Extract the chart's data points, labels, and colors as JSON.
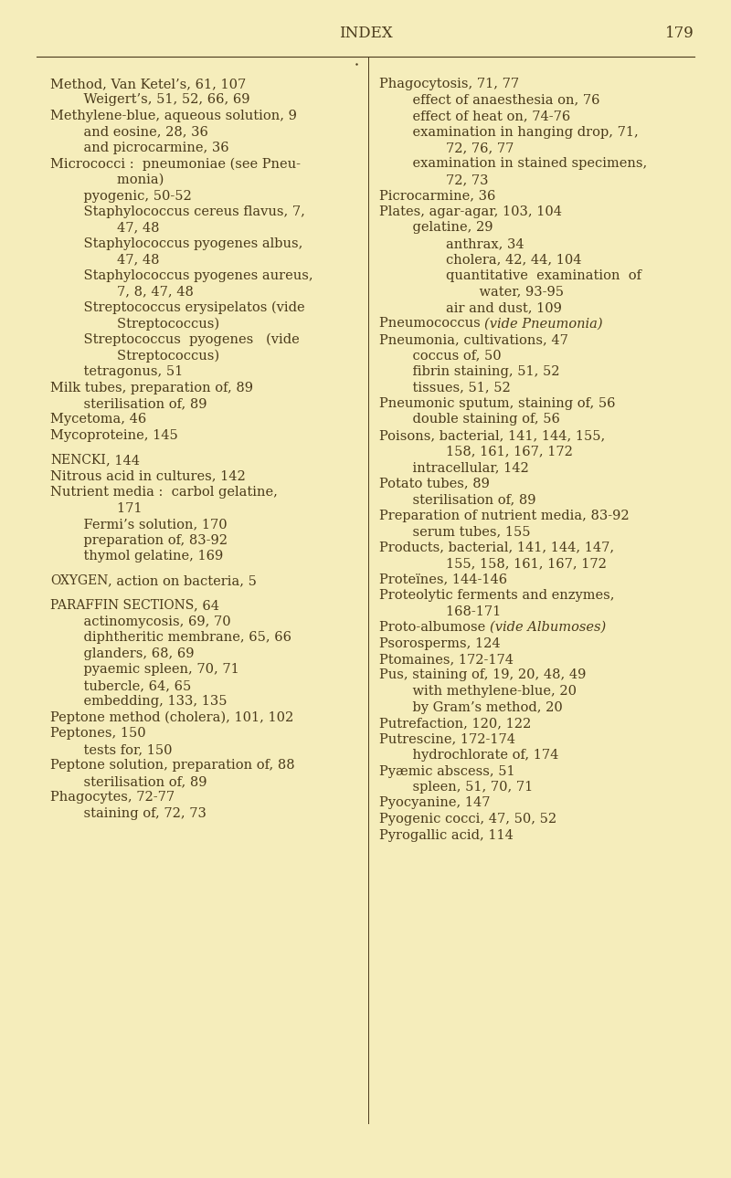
{
  "background_color": "#f5edbb",
  "text_color": "#4a3a1a",
  "header_title": "INDEX",
  "header_page": "179",
  "font_size": 10.5,
  "title_font_size": 12,
  "left_column": [
    {
      "text": "Method, Van Ketel’s, 61, 107",
      "indent": 0,
      "style": "normal"
    },
    {
      "text": "    Weigert’s, 51, 52, 66, 69",
      "indent": 1,
      "style": "normal"
    },
    {
      "text": "Methylene-blue, aqueous solution, 9",
      "indent": 0,
      "style": "normal"
    },
    {
      "text": "    and eosine, 28, 36",
      "indent": 1,
      "style": "normal"
    },
    {
      "text": "    and picrocarmine, 36",
      "indent": 1,
      "style": "normal"
    },
    {
      "text": "Micrococci :  pneumoniae (see Pneu-",
      "indent": 0,
      "style": "normal"
    },
    {
      "text": "        monia)",
      "indent": 2,
      "style": "normal"
    },
    {
      "text": "    pyogenic, 50-52",
      "indent": 1,
      "style": "normal"
    },
    {
      "text": "    Staphylococcus cereus flavus, 7,",
      "indent": 1,
      "style": "normal"
    },
    {
      "text": "        47, 48",
      "indent": 2,
      "style": "normal"
    },
    {
      "text": "    Staphylococcus pyogenes albus,",
      "indent": 1,
      "style": "normal"
    },
    {
      "text": "        47, 48",
      "indent": 2,
      "style": "normal"
    },
    {
      "text": "    Staphylococcus pyogenes aureus,",
      "indent": 1,
      "style": "normal"
    },
    {
      "text": "        7, 8, 47, 48",
      "indent": 2,
      "style": "normal"
    },
    {
      "text": "    Streptococcus erysipelatos (vide",
      "indent": 1,
      "style": "normal",
      "vide_suffix": " Streptococcus)"
    },
    {
      "text": "        Streptococcus)",
      "indent": 2,
      "style": "normal"
    },
    {
      "text": "    Streptococcus  pyogenes   (vide",
      "indent": 1,
      "style": "normal",
      "vide_suffix": " Streptococcus)"
    },
    {
      "text": "        Streptococcus)",
      "indent": 2,
      "style": "normal"
    },
    {
      "text": "    tetragonus, 51",
      "indent": 1,
      "style": "normal"
    },
    {
      "text": "Milk tubes, preparation of, 89",
      "indent": 0,
      "style": "normal"
    },
    {
      "text": "    sterilisation of, 89",
      "indent": 1,
      "style": "normal"
    },
    {
      "text": "Mycetoma, 46",
      "indent": 0,
      "style": "normal"
    },
    {
      "text": "Mycoproteine, 145",
      "indent": 0,
      "style": "normal"
    },
    {
      "text": "",
      "indent": 0,
      "style": "blank"
    },
    {
      "text": "Nencki, 144",
      "indent": 0,
      "style": "smallcaps"
    },
    {
      "text": "Nitrous acid in cultures, 142",
      "indent": 0,
      "style": "normal"
    },
    {
      "text": "Nutrient media :  carbol gelatine,",
      "indent": 0,
      "style": "normal"
    },
    {
      "text": "        171",
      "indent": 2,
      "style": "normal"
    },
    {
      "text": "    Fermi’s solution, 170",
      "indent": 1,
      "style": "normal"
    },
    {
      "text": "    preparation of, 83-92",
      "indent": 1,
      "style": "normal"
    },
    {
      "text": "    thymol gelatine, 169",
      "indent": 1,
      "style": "normal"
    },
    {
      "text": "",
      "indent": 0,
      "style": "blank"
    },
    {
      "text": "Oxygen, action on bacteria, 5",
      "indent": 0,
      "style": "smallcaps"
    },
    {
      "text": "",
      "indent": 0,
      "style": "blank"
    },
    {
      "text": "Paraffin sections, 64",
      "indent": 0,
      "style": "smallcaps"
    },
    {
      "text": "    actinomycosis, 69, 70",
      "indent": 1,
      "style": "normal"
    },
    {
      "text": "    diphtheritic membrane, 65, 66",
      "indent": 1,
      "style": "normal"
    },
    {
      "text": "    glanders, 68, 69",
      "indent": 1,
      "style": "normal"
    },
    {
      "text": "    pyaemic spleen, 70, 71",
      "indent": 1,
      "style": "normal"
    },
    {
      "text": "    tubercle, 64, 65",
      "indent": 1,
      "style": "normal"
    },
    {
      "text": "    embedding, 133, 135",
      "indent": 1,
      "style": "normal"
    },
    {
      "text": "Peptone method (cholera), 101, 102",
      "indent": 0,
      "style": "normal"
    },
    {
      "text": "Peptones, 150",
      "indent": 0,
      "style": "normal"
    },
    {
      "text": "    tests for, 150",
      "indent": 1,
      "style": "normal"
    },
    {
      "text": "Peptone solution, preparation of, 88",
      "indent": 0,
      "style": "normal"
    },
    {
      "text": "    sterilisation of, 89",
      "indent": 1,
      "style": "normal"
    },
    {
      "text": "Phagocytes, 72-77",
      "indent": 0,
      "style": "normal"
    },
    {
      "text": "    staining of, 72, 73",
      "indent": 1,
      "style": "normal"
    }
  ],
  "right_column": [
    {
      "text": "Phagocytosis, 71, 77",
      "indent": 0,
      "style": "normal"
    },
    {
      "text": "    effect of anaesthesia on, 76",
      "indent": 1,
      "style": "normal"
    },
    {
      "text": "    effect of heat on, 74-76",
      "indent": 1,
      "style": "normal"
    },
    {
      "text": "    examination in hanging drop, 71,",
      "indent": 1,
      "style": "normal"
    },
    {
      "text": "        72, 76, 77",
      "indent": 2,
      "style": "normal"
    },
    {
      "text": "    examination in stained specimens,",
      "indent": 1,
      "style": "normal"
    },
    {
      "text": "        72, 73",
      "indent": 2,
      "style": "normal"
    },
    {
      "text": "Picrocarmine, 36",
      "indent": 0,
      "style": "normal"
    },
    {
      "text": "Plates, agar-agar, 103, 104",
      "indent": 0,
      "style": "normal"
    },
    {
      "text": "    gelatine, 29",
      "indent": 1,
      "style": "normal"
    },
    {
      "text": "        anthrax, 34",
      "indent": 2,
      "style": "normal"
    },
    {
      "text": "        cholera, 42, 44, 104",
      "indent": 2,
      "style": "normal"
    },
    {
      "text": "        quantitative  examination  of",
      "indent": 2,
      "style": "normal"
    },
    {
      "text": "            water, 93-95",
      "indent": 3,
      "style": "normal"
    },
    {
      "text": "        air and dust, 109",
      "indent": 2,
      "style": "normal"
    },
    {
      "text": "Pneumococcus (vide Pneumonia)",
      "indent": 0,
      "style": "normal"
    },
    {
      "text": "Pneumonia, cultivations, 47",
      "indent": 0,
      "style": "normal"
    },
    {
      "text": "    coccus of, 50",
      "indent": 1,
      "style": "normal"
    },
    {
      "text": "    fibrin staining, 51, 52",
      "indent": 1,
      "style": "normal"
    },
    {
      "text": "    tissues, 51, 52",
      "indent": 1,
      "style": "normal"
    },
    {
      "text": "Pneumonic sputum, staining of, 56",
      "indent": 0,
      "style": "normal"
    },
    {
      "text": "    double staining of, 56",
      "indent": 1,
      "style": "normal"
    },
    {
      "text": "Poisons, bacterial, 141, 144, 155,",
      "indent": 0,
      "style": "normal"
    },
    {
      "text": "        158, 161, 167, 172",
      "indent": 2,
      "style": "normal"
    },
    {
      "text": "    intracellular, 142",
      "indent": 1,
      "style": "normal"
    },
    {
      "text": "Potato tubes, 89",
      "indent": 0,
      "style": "normal"
    },
    {
      "text": "    sterilisation of, 89",
      "indent": 1,
      "style": "normal"
    },
    {
      "text": "Preparation of nutrient media, 83-92",
      "indent": 0,
      "style": "normal"
    },
    {
      "text": "    serum tubes, 155",
      "indent": 1,
      "style": "normal"
    },
    {
      "text": "Products, bacterial, 141, 144, 147,",
      "indent": 0,
      "style": "normal"
    },
    {
      "text": "        155, 158, 161, 167, 172",
      "indent": 2,
      "style": "normal"
    },
    {
      "text": "Proteïnes, 144-146",
      "indent": 0,
      "style": "normal"
    },
    {
      "text": "Proteolytic ferments and enzymes,",
      "indent": 0,
      "style": "normal"
    },
    {
      "text": "        168-171",
      "indent": 2,
      "style": "normal"
    },
    {
      "text": "Proto-albumose (vide Albumoses)",
      "indent": 0,
      "style": "normal"
    },
    {
      "text": "Psorosperms, 124",
      "indent": 0,
      "style": "normal"
    },
    {
      "text": "Ptomaines, 172-174",
      "indent": 0,
      "style": "normal"
    },
    {
      "text": "Pus, staining of, 19, 20, 48, 49",
      "indent": 0,
      "style": "normal"
    },
    {
      "text": "    with methylene-blue, 20",
      "indent": 1,
      "style": "normal"
    },
    {
      "text": "    by Gram’s method, 20",
      "indent": 1,
      "style": "normal"
    },
    {
      "text": "Putrefaction, 120, 122",
      "indent": 0,
      "style": "normal"
    },
    {
      "text": "Putrescine, 172-174",
      "indent": 0,
      "style": "normal"
    },
    {
      "text": "    hydrochlorate of, 174",
      "indent": 1,
      "style": "normal"
    },
    {
      "text": "Pyæmic abscess, 51",
      "indent": 0,
      "style": "normal"
    },
    {
      "text": "    spleen, 51, 70, 71",
      "indent": 1,
      "style": "normal"
    },
    {
      "text": "Pyocyanine, 147",
      "indent": 0,
      "style": "normal"
    },
    {
      "text": "Pyogenic cocci, 47, 50, 52",
      "indent": 0,
      "style": "normal"
    },
    {
      "text": "Pyrogallic acid, 114",
      "indent": 0,
      "style": "normal"
    }
  ]
}
